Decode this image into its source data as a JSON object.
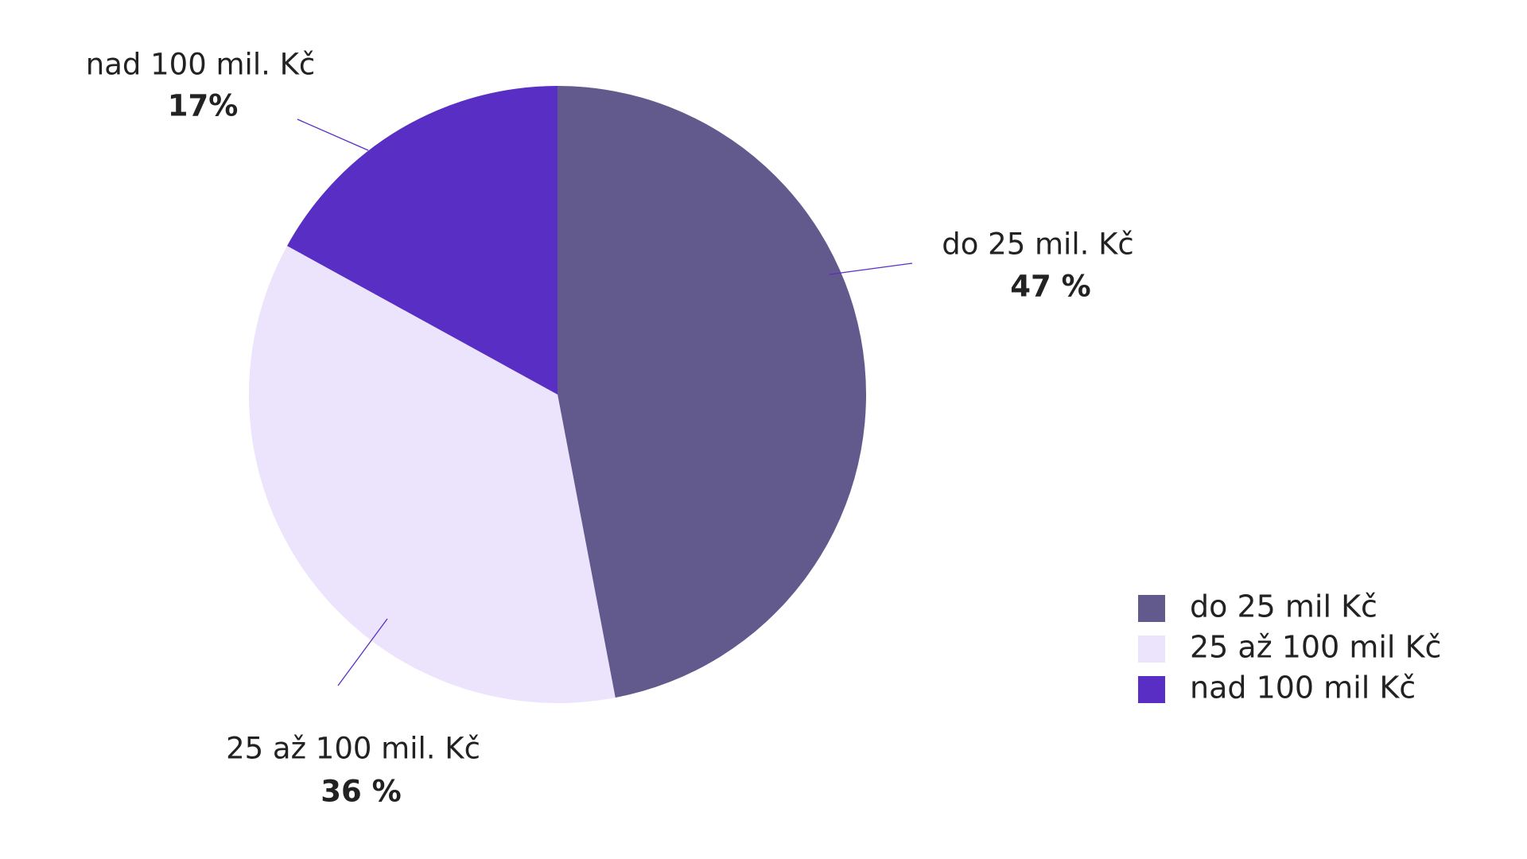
{
  "chart_data": {
    "type": "pie",
    "categories": [
      "do 25 mil. Kč",
      "25 až 100 mil. Kč",
      "nad 100 mil. Kč"
    ],
    "values": [
      47,
      36,
      17
    ],
    "value_labels": [
      "47 %",
      "36 %",
      "17%"
    ],
    "colors": [
      "#625a8c",
      "#ece4fd",
      "#582ec4"
    ],
    "legend": [
      "do 25 mil Kč",
      "25 až 100 mil Kč",
      "nad 100 mil Kč"
    ]
  }
}
